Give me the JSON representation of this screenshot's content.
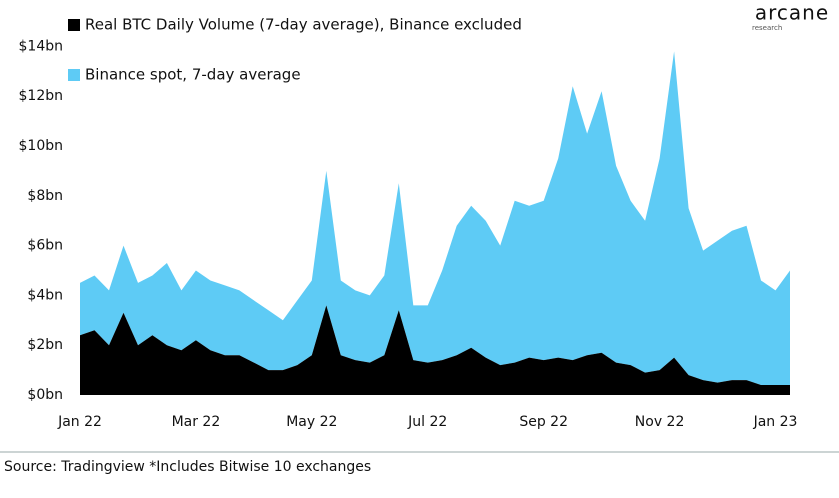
{
  "chart_data": {
    "type": "stacked-area",
    "brand": "arcane",
    "brand_sub": "research",
    "source": "Source: Tradingview *Includes Bitwise 10 exchanges",
    "categories": [
      "Jan 22",
      null,
      null,
      null,
      null,
      null,
      null,
      null,
      "Mar 22",
      null,
      null,
      null,
      null,
      null,
      null,
      null,
      "May 22",
      null,
      null,
      null,
      null,
      null,
      null,
      null,
      "Jul 22",
      null,
      null,
      null,
      null,
      null,
      null,
      null,
      "Sep 22",
      null,
      null,
      null,
      null,
      null,
      null,
      null,
      "Nov 22",
      null,
      null,
      null,
      null,
      null,
      null,
      null,
      "Jan 23",
      null
    ],
    "series": [
      {
        "name": "Real BTC Daily Volume (7-day average), Binance excluded",
        "color": "#000000",
        "values": [
          2.4,
          2.6,
          2.0,
          3.3,
          2.0,
          2.4,
          2.0,
          1.8,
          2.2,
          1.8,
          1.6,
          1.6,
          1.3,
          1.0,
          1.0,
          1.2,
          1.6,
          3.6,
          1.6,
          1.4,
          1.3,
          1.6,
          3.4,
          1.4,
          1.3,
          1.4,
          1.6,
          1.9,
          1.5,
          1.2,
          1.3,
          1.5,
          1.4,
          1.5,
          1.4,
          1.6,
          1.7,
          1.3,
          1.2,
          0.9,
          1.0,
          1.5,
          0.8,
          0.6,
          0.5,
          0.6,
          0.6,
          0.4,
          0.4,
          0.4
        ]
      },
      {
        "name": "Binance spot, 7-day average",
        "color": "#5ecbf5",
        "values": [
          2.1,
          2.2,
          2.2,
          2.7,
          2.5,
          2.4,
          3.3,
          2.4,
          2.8,
          2.8,
          2.8,
          2.6,
          2.5,
          2.4,
          2.0,
          2.6,
          3.0,
          5.4,
          3.0,
          2.8,
          2.7,
          3.2,
          5.1,
          2.2,
          2.3,
          3.6,
          5.2,
          5.7,
          5.5,
          4.8,
          6.5,
          6.1,
          6.4,
          8.0,
          11.0,
          8.9,
          10.5,
          7.9,
          6.6,
          6.1,
          8.5,
          12.3,
          6.7,
          5.2,
          5.7,
          6.0,
          6.2,
          4.2,
          3.8,
          4.6
        ]
      }
    ],
    "ylim": [
      0,
      15
    ],
    "yticks": [
      {
        "value": 0,
        "label": "$0bn"
      },
      {
        "value": 2,
        "label": "$2bn"
      },
      {
        "value": 4,
        "label": "$4bn"
      },
      {
        "value": 6,
        "label": "$6bn"
      },
      {
        "value": 8,
        "label": "$8bn"
      },
      {
        "value": 10,
        "label": "$10bn"
      },
      {
        "value": 12,
        "label": "$12bn"
      },
      {
        "value": 14,
        "label": "$14bn"
      }
    ],
    "grid": false
  }
}
